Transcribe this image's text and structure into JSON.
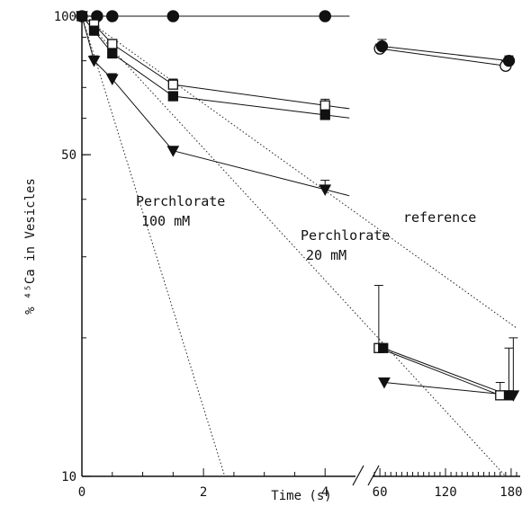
{
  "chart_data": {
    "type": "scatter",
    "title": "",
    "xlabel": "Time (s)",
    "ylabel": "% ⁴⁵Ca in Vesicles",
    "y_scale": "log",
    "ylim": [
      10,
      100
    ],
    "y_ticks": [
      {
        "value": 10,
        "label": "10"
      },
      {
        "value": 50,
        "label": "50"
      },
      {
        "value": 100,
        "label": "100"
      }
    ],
    "x_axis_broken": true,
    "x_panels": [
      {
        "xlim": [
          0,
          4.5
        ],
        "ticks": [
          {
            "value": 0,
            "label": "0"
          },
          {
            "value": 2,
            "label": "2"
          },
          {
            "value": 4,
            "label": "4"
          }
        ]
      },
      {
        "xlim": [
          55,
          185
        ],
        "ticks": [
          {
            "value": 60,
            "label": "60"
          },
          {
            "value": 120,
            "label": "120"
          },
          {
            "value": 180,
            "label": "180"
          }
        ]
      }
    ],
    "grid": false,
    "legend": "none",
    "series": [
      {
        "marker": "open-circle",
        "points": [
          {
            "x": 0,
            "y": 100
          },
          {
            "x": 0.25,
            "y": 100
          },
          {
            "x": 0.5,
            "y": 100
          },
          {
            "x": 1.5,
            "y": 100
          },
          {
            "x": 4.0,
            "y": 100
          },
          {
            "x": 60,
            "y": 85,
            "err": 2
          },
          {
            "x": 175,
            "y": 78,
            "err": 2
          }
        ]
      },
      {
        "marker": "filled-circle",
        "points": [
          {
            "x": 0,
            "y": 100
          },
          {
            "x": 0.25,
            "y": 100
          },
          {
            "x": 0.5,
            "y": 100
          },
          {
            "x": 1.5,
            "y": 100
          },
          {
            "x": 4.0,
            "y": 100
          },
          {
            "x": 62,
            "y": 86,
            "err": 3
          },
          {
            "x": 178,
            "y": 80,
            "err": 2
          }
        ]
      },
      {
        "marker": "open-square",
        "points": [
          {
            "x": 0,
            "y": 100
          },
          {
            "x": 0.2,
            "y": 96
          },
          {
            "x": 0.5,
            "y": 87,
            "err": 2
          },
          {
            "x": 1.5,
            "y": 71,
            "err": 2
          },
          {
            "x": 4.0,
            "y": 64,
            "err": 2
          },
          {
            "x": 59,
            "y": 19,
            "err": 7
          },
          {
            "x": 170,
            "y": 15,
            "err": 1
          }
        ]
      },
      {
        "marker": "filled-square",
        "points": [
          {
            "x": 0,
            "y": 100
          },
          {
            "x": 0.2,
            "y": 93
          },
          {
            "x": 0.5,
            "y": 83
          },
          {
            "x": 1.5,
            "y": 67
          },
          {
            "x": 4.0,
            "y": 61
          },
          {
            "x": 63,
            "y": 19
          },
          {
            "x": 178,
            "y": 15,
            "err": 4
          }
        ]
      },
      {
        "marker": "filled-triangle",
        "points": [
          {
            "x": 0,
            "y": 100
          },
          {
            "x": 0.2,
            "y": 80,
            "err": 2
          },
          {
            "x": 0.5,
            "y": 73,
            "err": 2
          },
          {
            "x": 1.5,
            "y": 51
          },
          {
            "x": 4.0,
            "y": 42,
            "err": 2
          },
          {
            "x": 64,
            "y": 16
          },
          {
            "x": 182,
            "y": 15,
            "err": 5
          }
        ]
      }
    ],
    "reference_lines": [
      {
        "style": "dotted",
        "label_lines": [
          "Perchlorate",
          "100 mM"
        ],
        "from": {
          "x": 0,
          "y": 100
        },
        "to": {
          "x": 2.35,
          "y": 10
        }
      },
      {
        "style": "dotted",
        "label_lines": [
          "Perchlorate",
          "20 mM"
        ],
        "from": {
          "x": 0,
          "y": 100
        },
        "to": {
          "x": 175,
          "y": 10
        }
      },
      {
        "style": "dotted",
        "label_lines": [
          "reference"
        ],
        "from": {
          "x": 0,
          "y": 100
        },
        "to": {
          "x": 185,
          "y": 21
        }
      }
    ]
  }
}
